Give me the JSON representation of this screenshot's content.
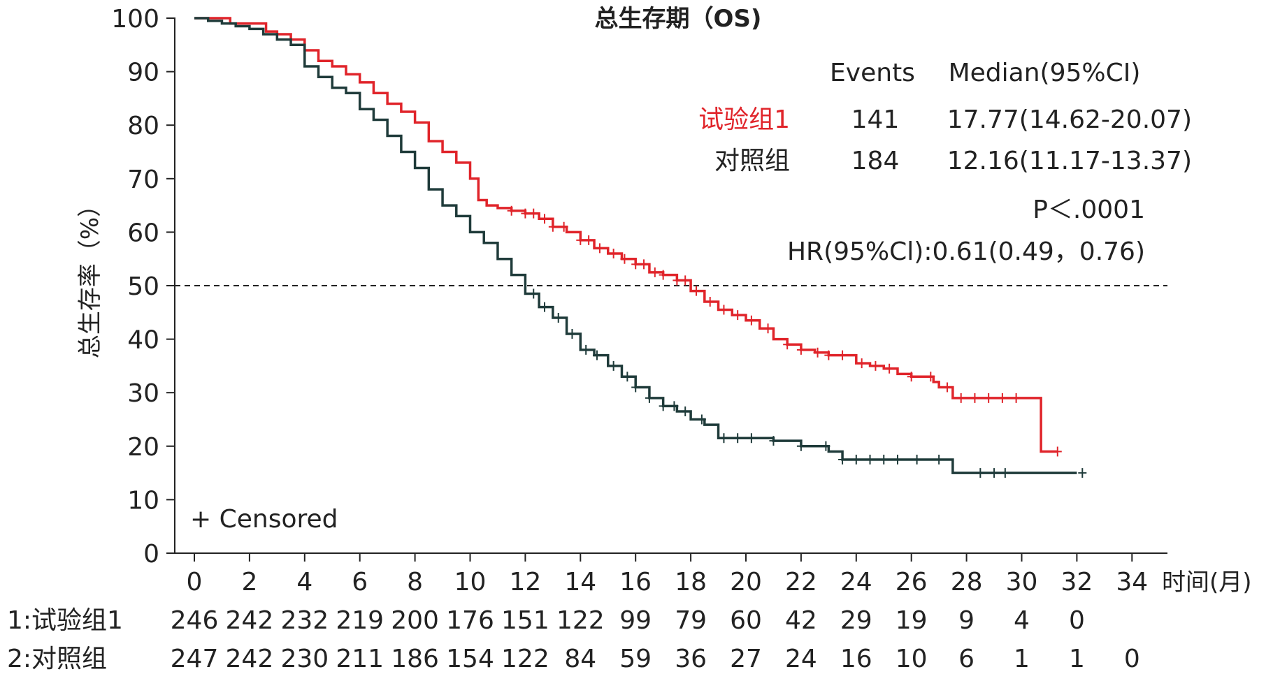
{
  "chart_data": {
    "type": "line",
    "title": "总生存期（OS)",
    "xlabel": "时间(月)",
    "ylabel": "总生存率（%）",
    "xlim": [
      0,
      34
    ],
    "ylim": [
      0,
      100
    ],
    "x_ticks": [
      "0",
      "2",
      "4",
      "6",
      "8",
      "10",
      "12",
      "14",
      "16",
      "18",
      "20",
      "22",
      "24",
      "26",
      "28",
      "30",
      "32",
      "34"
    ],
    "y_ticks": [
      "0",
      "10",
      "20",
      "30",
      "40",
      "50",
      "60",
      "70",
      "80",
      "90",
      "100"
    ],
    "reference_line": {
      "y": 50,
      "style": "dashed"
    },
    "censored_label": "+ Censored",
    "stats_table": {
      "headers": [
        "Events",
        "Median(95%CI)"
      ],
      "rows": [
        {
          "group": "试验组1",
          "events": "141",
          "median": "17.77(14.62-20.07)",
          "color": "#e0242a"
        },
        {
          "group": "对照组",
          "events": "184",
          "median": "12.16(11.17-13.37)",
          "color": "#222222"
        }
      ],
      "p_value": "P＜.0001",
      "hr": "HR(95%Cl):0.61(0.49，0.76)"
    },
    "series": [
      {
        "name": "试验组1",
        "color": "#e0242a",
        "x": [
          0,
          1.1,
          1.3,
          2.0,
          2.6,
          3.0,
          3.5,
          4.0,
          4.5,
          5.0,
          5.5,
          6.0,
          6.5,
          7.0,
          7.5,
          8.0,
          8.5,
          9.0,
          9.5,
          10.0,
          10.3,
          10.6,
          11.0,
          11.5,
          12.0,
          12.5,
          13.0,
          13.5,
          14.0,
          14.5,
          15.0,
          15.5,
          16.0,
          16.5,
          17.0,
          17.5,
          18.0,
          18.5,
          19.0,
          19.5,
          20.0,
          20.5,
          21.0,
          21.5,
          22.0,
          22.5,
          23.0,
          23.5,
          24.0,
          24.5,
          25.0,
          25.5,
          26.0,
          26.5,
          26.8,
          27.0,
          27.5,
          28.0,
          29.0,
          30.0,
          30.5,
          30.7,
          31.0,
          31.3
        ],
        "y": [
          100,
          100,
          99,
          99,
          97.5,
          97,
          96,
          94,
          92,
          91,
          89.5,
          88,
          86,
          84,
          82.5,
          80.5,
          77,
          75,
          73,
          70,
          66,
          65,
          64.5,
          64,
          63.5,
          62.5,
          61,
          60,
          58.5,
          57,
          56,
          55,
          54,
          52.5,
          52,
          51,
          49,
          47,
          45.5,
          44.5,
          43.5,
          42,
          40,
          39,
          38,
          37.5,
          37,
          37,
          35.5,
          35,
          34.5,
          33.5,
          33,
          33,
          32,
          31,
          29,
          29,
          29,
          29,
          29,
          19,
          19,
          19
        ],
        "censor_x": [
          11.5,
          12.0,
          12.3,
          12.7,
          13.0,
          13.4,
          14.0,
          14.3,
          14.7,
          15.2,
          15.6,
          16.0,
          16.3,
          16.7,
          17.0,
          17.5,
          17.8,
          18.2,
          18.7,
          19.2,
          19.7,
          20.2,
          20.8,
          21.5,
          22.0,
          22.6,
          23.0,
          23.5,
          24.2,
          24.7,
          25.2,
          26.0,
          26.7,
          27.3,
          27.8,
          28.3,
          28.8,
          29.3,
          29.8,
          31.3
        ]
      },
      {
        "name": "对照组",
        "color": "#1f3b3a",
        "x": [
          0,
          0.5,
          1.0,
          1.5,
          2.0,
          2.5,
          3.0,
          3.5,
          4.0,
          4.5,
          5.0,
          5.5,
          6.0,
          6.5,
          7.0,
          7.5,
          8.0,
          8.5,
          9.0,
          9.5,
          10.0,
          10.5,
          11.0,
          11.5,
          12.0,
          12.5,
          13.0,
          13.5,
          14.0,
          14.5,
          15.0,
          15.5,
          16.0,
          16.5,
          17.0,
          17.5,
          18.0,
          18.5,
          19.0,
          20.0,
          21.0,
          22.0,
          23.0,
          23.5,
          24.0,
          25.0,
          26.0,
          27.0,
          27.5,
          28.0,
          29.0,
          30.0,
          31.0,
          32.0
        ],
        "y": [
          100,
          99.5,
          99,
          98.5,
          98,
          97,
          96,
          95,
          91,
          89,
          87,
          86,
          83,
          81,
          78,
          75,
          72,
          68,
          65,
          63,
          60,
          58,
          55,
          52,
          48.5,
          46,
          44,
          41,
          38,
          37,
          35,
          33,
          31,
          29,
          27.5,
          26.5,
          25,
          24,
          21.5,
          21.5,
          21,
          20,
          19,
          17.5,
          17.5,
          17.5,
          17.5,
          17.5,
          15,
          15,
          15,
          15,
          15,
          15
        ],
        "censor_x": [
          12.3,
          12.7,
          13.2,
          13.7,
          14.2,
          14.6,
          15.2,
          15.7,
          16.0,
          16.5,
          17.0,
          17.4,
          17.8,
          18.4,
          19.2,
          19.7,
          20.2,
          21.0,
          22.0,
          22.9,
          23.5,
          24.0,
          24.5,
          25.0,
          25.5,
          26.2,
          27.0,
          28.5,
          29.0,
          29.4,
          32.2
        ]
      }
    ],
    "at_risk": {
      "rows": [
        {
          "label": "1:试验组1",
          "values": [
            "246",
            "242",
            "232",
            "219",
            "200",
            "176",
            "151",
            "122",
            "99",
            "79",
            "60",
            "42",
            "29",
            "19",
            "9",
            "4",
            "0",
            ""
          ]
        },
        {
          "label": "2:对照组",
          "values": [
            "247",
            "242",
            "230",
            "211",
            "186",
            "154",
            "122",
            "84",
            "59",
            "36",
            "27",
            "24",
            "16",
            "10",
            "6",
            "1",
            "1",
            "0"
          ]
        }
      ]
    }
  }
}
